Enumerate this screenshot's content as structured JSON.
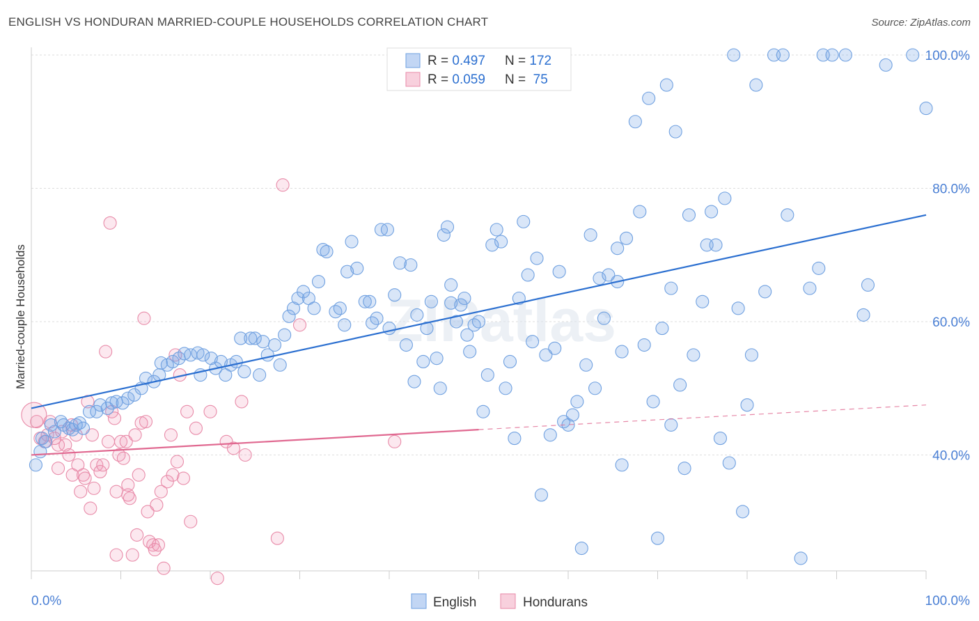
{
  "title": "ENGLISH VS HONDURAN MARRIED-COUPLE HOUSEHOLDS CORRELATION CHART",
  "source": "Source: ZipAtlas.com",
  "watermark": "ZIPatlas",
  "colors": {
    "english": "#6fa0e0",
    "english_fill": "rgba(120,165,230,0.28)",
    "english_line": "#2b6fd0",
    "hondurans": "#e88aa8",
    "hondurans_fill": "rgba(240,150,180,0.22)",
    "hondurans_line": "#e06890",
    "tick_text": "#4a7fd4",
    "grid": "#dddddd"
  },
  "legend": {
    "rows": [
      {
        "r_label": "R = ",
        "r_value": "0.497",
        "n_label": "N = ",
        "n_value": "172"
      },
      {
        "r_label": "R = ",
        "r_value": "0.059",
        "n_label": "N = ",
        "n_value": " 75"
      }
    ]
  },
  "bottom_legend": [
    "English",
    "Hondurans"
  ],
  "chart_data": {
    "type": "scatter",
    "title": "ENGLISH VS HONDURAN MARRIED-COUPLE HOUSEHOLDS CORRELATION CHART",
    "xlabel": "",
    "ylabel": "Married-couple Households",
    "xlim": [
      0,
      100
    ],
    "ylim": [
      20,
      102
    ],
    "x_tick_labels": [
      "0.0%",
      "100.0%"
    ],
    "y_ticks": [
      40,
      60,
      80,
      100
    ],
    "y_tick_labels": [
      "40.0%",
      "60.0%",
      "80.0%",
      "100.0%"
    ],
    "grid": true,
    "legend_position": "top-center",
    "series": [
      {
        "name": "English",
        "stats": {
          "R": 0.497,
          "N": 172
        },
        "trend": {
          "x0": 0,
          "y0": 47.0,
          "x1": 100,
          "y1": 76.0
        },
        "points": [
          [
            0.5,
            38.5
          ],
          [
            1.0,
            40.5
          ],
          [
            1.2,
            42.5
          ],
          [
            1.6,
            42.0
          ],
          [
            2.2,
            44.5
          ],
          [
            2.6,
            43.5
          ],
          [
            3.3,
            45.0
          ],
          [
            3.6,
            44.5
          ],
          [
            4.2,
            44.0
          ],
          [
            4.6,
            43.8
          ],
          [
            5.0,
            44.5
          ],
          [
            5.4,
            44.8
          ],
          [
            5.8,
            44.0
          ],
          [
            6.5,
            46.5
          ],
          [
            7.3,
            46.5
          ],
          [
            7.7,
            47.5
          ],
          [
            8.5,
            47.0
          ],
          [
            9.0,
            47.8
          ],
          [
            9.5,
            48.0
          ],
          [
            10.2,
            47.8
          ],
          [
            10.8,
            48.5
          ],
          [
            11.5,
            49.0
          ],
          [
            12.3,
            50.0
          ],
          [
            12.8,
            51.5
          ],
          [
            13.7,
            51.0
          ],
          [
            14.3,
            52.0
          ],
          [
            14.5,
            53.8
          ],
          [
            15.2,
            53.5
          ],
          [
            15.8,
            54.0
          ],
          [
            16.5,
            54.5
          ],
          [
            17.1,
            55.2
          ],
          [
            17.8,
            55.0
          ],
          [
            18.6,
            55.3
          ],
          [
            18.9,
            52.0
          ],
          [
            19.2,
            55.0
          ],
          [
            20.1,
            54.5
          ],
          [
            20.6,
            53.0
          ],
          [
            21.2,
            54.0
          ],
          [
            21.7,
            52.0
          ],
          [
            22.3,
            53.5
          ],
          [
            22.9,
            54.0
          ],
          [
            23.4,
            57.5
          ],
          [
            23.8,
            52.5
          ],
          [
            24.5,
            57.5
          ],
          [
            25.0,
            57.5
          ],
          [
            25.5,
            52.0
          ],
          [
            25.9,
            57.0
          ],
          [
            26.4,
            55.0
          ],
          [
            27.2,
            56.5
          ],
          [
            27.8,
            53.5
          ],
          [
            28.3,
            58.0
          ],
          [
            28.8,
            60.8
          ],
          [
            29.3,
            62.0
          ],
          [
            29.8,
            63.5
          ],
          [
            30.4,
            64.5
          ],
          [
            31.0,
            63.5
          ],
          [
            31.6,
            62.0
          ],
          [
            32.1,
            66.0
          ],
          [
            32.6,
            70.8
          ],
          [
            33.0,
            70.5
          ],
          [
            34.0,
            61.5
          ],
          [
            34.5,
            62.0
          ],
          [
            35.0,
            59.5
          ],
          [
            35.3,
            67.5
          ],
          [
            35.8,
            72.0
          ],
          [
            36.4,
            68.0
          ],
          [
            37.3,
            63.0
          ],
          [
            37.8,
            63.0
          ],
          [
            38.1,
            59.8
          ],
          [
            38.6,
            60.5
          ],
          [
            39.1,
            73.8
          ],
          [
            39.8,
            73.8
          ],
          [
            40.0,
            59.0
          ],
          [
            40.6,
            64.0
          ],
          [
            41.2,
            68.8
          ],
          [
            41.9,
            56.5
          ],
          [
            42.4,
            68.5
          ],
          [
            42.8,
            51.0
          ],
          [
            43.1,
            61.0
          ],
          [
            43.8,
            54.0
          ],
          [
            44.2,
            59.0
          ],
          [
            44.7,
            63.0
          ],
          [
            45.3,
            54.5
          ],
          [
            45.7,
            50.0
          ],
          [
            46.1,
            73.0
          ],
          [
            46.5,
            74.2
          ],
          [
            46.9,
            62.8
          ],
          [
            46.9,
            65.5
          ],
          [
            47.5,
            60.0
          ],
          [
            48.0,
            62.5
          ],
          [
            48.4,
            63.5
          ],
          [
            48.7,
            58.0
          ],
          [
            49.0,
            55.5
          ],
          [
            49.5,
            59.5
          ],
          [
            50.0,
            60.0
          ],
          [
            50.5,
            46.5
          ],
          [
            51.0,
            52.0
          ],
          [
            51.5,
            71.5
          ],
          [
            52.0,
            73.8
          ],
          [
            52.5,
            72.0
          ],
          [
            53.0,
            50.0
          ],
          [
            53.5,
            54.0
          ],
          [
            54.0,
            42.5
          ],
          [
            54.5,
            63.5
          ],
          [
            55.0,
            75.0
          ],
          [
            55.5,
            67.0
          ],
          [
            56.0,
            57.0
          ],
          [
            56.5,
            69.5
          ],
          [
            57.0,
            34.0
          ],
          [
            57.5,
            55.0
          ],
          [
            58.0,
            43.0
          ],
          [
            58.5,
            56.0
          ],
          [
            59.0,
            67.5
          ],
          [
            59.5,
            45.0
          ],
          [
            60.0,
            44.5
          ],
          [
            60.5,
            46.0
          ],
          [
            61.0,
            48.0
          ],
          [
            61.5,
            26.0
          ],
          [
            62.0,
            53.5
          ],
          [
            62.5,
            73.0
          ],
          [
            63.0,
            50.0
          ],
          [
            63.5,
            66.5
          ],
          [
            64.0,
            60.5
          ],
          [
            64.5,
            67.0
          ],
          [
            65.5,
            66.0
          ],
          [
            65.5,
            71.0
          ],
          [
            66.0,
            55.5
          ],
          [
            66.0,
            38.5
          ],
          [
            66.5,
            72.5
          ],
          [
            67.5,
            90.0
          ],
          [
            68.0,
            76.5
          ],
          [
            68.5,
            56.5
          ],
          [
            69.0,
            93.5
          ],
          [
            69.5,
            48.0
          ],
          [
            70.0,
            27.5
          ],
          [
            70.5,
            59.0
          ],
          [
            71.0,
            95.5
          ],
          [
            71.5,
            65.0
          ],
          [
            71.5,
            44.5
          ],
          [
            72.0,
            88.5
          ],
          [
            72.5,
            50.5
          ],
          [
            73.0,
            38.0
          ],
          [
            73.5,
            76.0
          ],
          [
            74.0,
            55.0
          ],
          [
            75.0,
            63.0
          ],
          [
            75.5,
            71.5
          ],
          [
            76.0,
            76.5
          ],
          [
            76.5,
            71.5
          ],
          [
            77.0,
            42.5
          ],
          [
            77.5,
            78.5
          ],
          [
            78.0,
            38.8
          ],
          [
            78.5,
            100.0
          ],
          [
            79.0,
            62.0
          ],
          [
            79.5,
            31.5
          ],
          [
            80.0,
            47.5
          ],
          [
            80.5,
            55.0
          ],
          [
            81.0,
            95.5
          ],
          [
            82.0,
            64.5
          ],
          [
            83.0,
            100.0
          ],
          [
            84.0,
            100.0
          ],
          [
            84.5,
            76.0
          ],
          [
            86.0,
            24.5
          ],
          [
            87.0,
            65.0
          ],
          [
            88.0,
            68.0
          ],
          [
            88.5,
            100.0
          ],
          [
            89.5,
            100.0
          ],
          [
            91.0,
            100.0
          ],
          [
            93.0,
            61.0
          ],
          [
            93.5,
            65.5
          ],
          [
            95.5,
            98.5
          ],
          [
            98.5,
            100.0
          ],
          [
            100.0,
            92.0
          ]
        ]
      },
      {
        "name": "Hondurans",
        "stats": {
          "R": 0.059,
          "N": 75
        },
        "trend": {
          "x0": 0,
          "y0": 40.0,
          "x1": 50,
          "y1": 43.8,
          "dashed_to": {
            "x": 100,
            "y": 47.5
          }
        },
        "points": [
          [
            0.3,
            46.0
          ],
          [
            0.6,
            45.0
          ],
          [
            1.0,
            42.5
          ],
          [
            1.5,
            42.0
          ],
          [
            1.8,
            43.0
          ],
          [
            2.1,
            45.0
          ],
          [
            2.6,
            42.5
          ],
          [
            3.0,
            41.5
          ],
          [
            3.0,
            38.0
          ],
          [
            3.4,
            43.5
          ],
          [
            3.8,
            41.5
          ],
          [
            4.2,
            40.0
          ],
          [
            4.5,
            44.5
          ],
          [
            4.6,
            37.0
          ],
          [
            5.0,
            43.0
          ],
          [
            5.2,
            38.5
          ],
          [
            5.5,
            34.5
          ],
          [
            5.8,
            37.0
          ],
          [
            6.0,
            36.5
          ],
          [
            6.3,
            48.0
          ],
          [
            6.6,
            32.0
          ],
          [
            6.8,
            43.0
          ],
          [
            7.0,
            35.0
          ],
          [
            7.3,
            38.5
          ],
          [
            7.7,
            37.5
          ],
          [
            8.0,
            38.5
          ],
          [
            8.3,
            55.5
          ],
          [
            8.6,
            42.0
          ],
          [
            8.8,
            74.8
          ],
          [
            9.0,
            46.5
          ],
          [
            9.3,
            45.5
          ],
          [
            9.5,
            34.5
          ],
          [
            9.8,
            40.0
          ],
          [
            9.5,
            25.0
          ],
          [
            10.0,
            42.0
          ],
          [
            10.3,
            39.5
          ],
          [
            10.6,
            42.0
          ],
          [
            10.8,
            34.0
          ],
          [
            11.0,
            33.5
          ],
          [
            11.3,
            25.0
          ],
          [
            11.6,
            43.0
          ],
          [
            11.8,
            28.0
          ],
          [
            12.0,
            37.0
          ],
          [
            12.3,
            44.8
          ],
          [
            12.6,
            60.5
          ],
          [
            12.8,
            45.0
          ],
          [
            13.0,
            31.5
          ],
          [
            13.2,
            27.0
          ],
          [
            13.6,
            26.5
          ],
          [
            13.8,
            25.8
          ],
          [
            14.0,
            32.5
          ],
          [
            14.2,
            26.5
          ],
          [
            14.5,
            34.5
          ],
          [
            14.8,
            23.0
          ],
          [
            15.2,
            36.0
          ],
          [
            15.6,
            43.0
          ],
          [
            15.8,
            37.0
          ],
          [
            16.1,
            55.0
          ],
          [
            16.3,
            39.0
          ],
          [
            16.6,
            52.0
          ],
          [
            17.0,
            36.5
          ],
          [
            17.4,
            46.5
          ],
          [
            17.8,
            30.0
          ],
          [
            18.4,
            44.0
          ],
          [
            20.0,
            46.5
          ],
          [
            20.8,
            21.5
          ],
          [
            21.8,
            42.0
          ],
          [
            22.6,
            41.0
          ],
          [
            23.5,
            48.0
          ],
          [
            23.9,
            40.0
          ],
          [
            27.5,
            27.5
          ],
          [
            28.1,
            80.5
          ],
          [
            30.0,
            59.5
          ],
          [
            40.6,
            42.0
          ],
          [
            10.8,
            35.5
          ]
        ]
      }
    ]
  }
}
